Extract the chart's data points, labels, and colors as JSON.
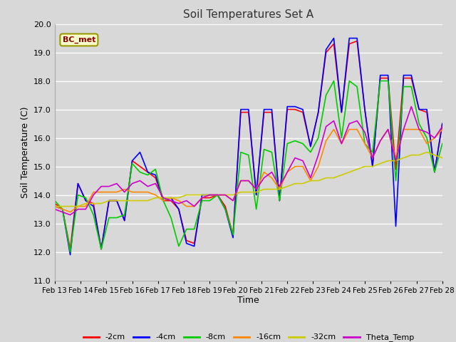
{
  "title": "Soil Temperatures Set A",
  "xlabel": "Time",
  "ylabel": "Soil Temperature (C)",
  "ylim": [
    11.0,
    20.0
  ],
  "yticks": [
    11.0,
    12.0,
    13.0,
    14.0,
    15.0,
    16.0,
    17.0,
    18.0,
    19.0,
    20.0
  ],
  "annotation": "BC_met",
  "line_colors": {
    "-2cm": "#ff0000",
    "-4cm": "#0000ff",
    "-8cm": "#00cc00",
    "-16cm": "#ff8800",
    "-32cm": "#cccc00",
    "Theta_Temp": "#cc00cc"
  },
  "fig_bg_color": "#d8d8d8",
  "plot_bg_color": "#d8d8d8",
  "grid_color": "#ffffff",
  "dates": [
    "Feb 13",
    "Feb 14",
    "Feb 15",
    "Feb 16",
    "Feb 17",
    "Feb 18",
    "Feb 19",
    "Feb 20",
    "Feb 21",
    "Feb 22",
    "Feb 23",
    "Feb 24",
    "Feb 25",
    "Feb 26",
    "Feb 27",
    "Feb 28"
  ],
  "data": {
    "-2cm": [
      13.7,
      13.5,
      12.1,
      14.4,
      13.8,
      13.7,
      12.1,
      13.8,
      13.8,
      13.1,
      15.2,
      15.0,
      14.8,
      14.6,
      13.8,
      13.8,
      13.5,
      12.4,
      12.3,
      13.9,
      13.9,
      14.0,
      13.6,
      12.6,
      16.9,
      16.9,
      14.0,
      16.9,
      16.9,
      13.8,
      17.0,
      17.0,
      16.9,
      15.7,
      16.9,
      19.0,
      19.3,
      16.9,
      19.3,
      19.4,
      17.0,
      15.0,
      18.1,
      18.1,
      14.9,
      18.1,
      18.1,
      17.0,
      16.9,
      14.8,
      16.5
    ],
    "-4cm": [
      13.6,
      13.5,
      11.9,
      14.4,
      13.8,
      13.6,
      12.1,
      13.8,
      13.8,
      13.1,
      15.2,
      15.5,
      14.8,
      14.7,
      13.8,
      13.9,
      13.5,
      12.3,
      12.2,
      14.0,
      14.0,
      14.0,
      13.5,
      12.5,
      17.0,
      17.0,
      14.0,
      17.0,
      17.0,
      13.8,
      17.1,
      17.1,
      17.0,
      15.7,
      16.9,
      19.1,
      19.5,
      16.9,
      19.5,
      19.5,
      17.0,
      15.0,
      18.2,
      18.2,
      12.9,
      18.2,
      18.2,
      17.0,
      17.0,
      14.8,
      16.5
    ],
    "-8cm": [
      13.8,
      13.5,
      12.0,
      14.0,
      13.9,
      13.3,
      12.1,
      13.2,
      13.2,
      13.3,
      15.1,
      14.8,
      14.7,
      14.9,
      13.8,
      13.2,
      12.2,
      12.8,
      12.8,
      13.8,
      13.8,
      14.0,
      13.5,
      12.6,
      15.5,
      15.4,
      13.5,
      15.6,
      15.5,
      13.8,
      15.8,
      15.9,
      15.8,
      15.5,
      16.0,
      17.5,
      18.0,
      16.0,
      18.0,
      17.8,
      15.8,
      15.5,
      18.0,
      18.0,
      14.5,
      17.8,
      17.8,
      16.5,
      16.0,
      14.8,
      15.8
    ],
    "-16cm": [
      13.6,
      13.5,
      13.4,
      13.6,
      13.6,
      14.1,
      14.1,
      14.1,
      14.1,
      14.2,
      14.1,
      14.1,
      14.1,
      14.0,
      13.8,
      13.9,
      13.8,
      13.6,
      13.6,
      13.9,
      14.0,
      14.0,
      14.0,
      13.8,
      14.5,
      14.5,
      14.2,
      14.8,
      14.6,
      14.2,
      14.8,
      15.0,
      15.0,
      14.5,
      15.0,
      15.9,
      16.3,
      15.8,
      16.3,
      16.3,
      15.8,
      15.3,
      15.9,
      16.3,
      15.3,
      16.3,
      16.3,
      16.3,
      15.8,
      16.0,
      16.3
    ],
    "-32cm": [
      13.6,
      13.6,
      13.6,
      13.6,
      13.7,
      13.7,
      13.7,
      13.8,
      13.8,
      13.8,
      13.8,
      13.8,
      13.8,
      13.9,
      13.9,
      13.9,
      13.9,
      14.0,
      14.0,
      14.0,
      14.0,
      14.0,
      14.0,
      14.0,
      14.1,
      14.1,
      14.1,
      14.2,
      14.2,
      14.2,
      14.3,
      14.4,
      14.4,
      14.5,
      14.5,
      14.6,
      14.6,
      14.7,
      14.8,
      14.9,
      15.0,
      15.0,
      15.1,
      15.2,
      15.2,
      15.3,
      15.4,
      15.4,
      15.5,
      15.4,
      15.3
    ],
    "Theta_Temp": [
      13.5,
      13.4,
      13.3,
      13.5,
      13.5,
      14.0,
      14.3,
      14.3,
      14.4,
      14.1,
      14.4,
      14.5,
      14.3,
      14.4,
      13.9,
      13.8,
      13.7,
      13.8,
      13.6,
      13.9,
      14.0,
      14.0,
      14.0,
      13.8,
      14.5,
      14.5,
      14.2,
      14.6,
      14.8,
      14.3,
      14.8,
      15.3,
      15.2,
      14.6,
      15.4,
      16.4,
      16.6,
      15.8,
      16.5,
      16.6,
      16.2,
      15.3,
      15.9,
      16.3,
      15.2,
      16.3,
      17.1,
      16.3,
      16.2,
      16.0,
      16.4
    ]
  }
}
